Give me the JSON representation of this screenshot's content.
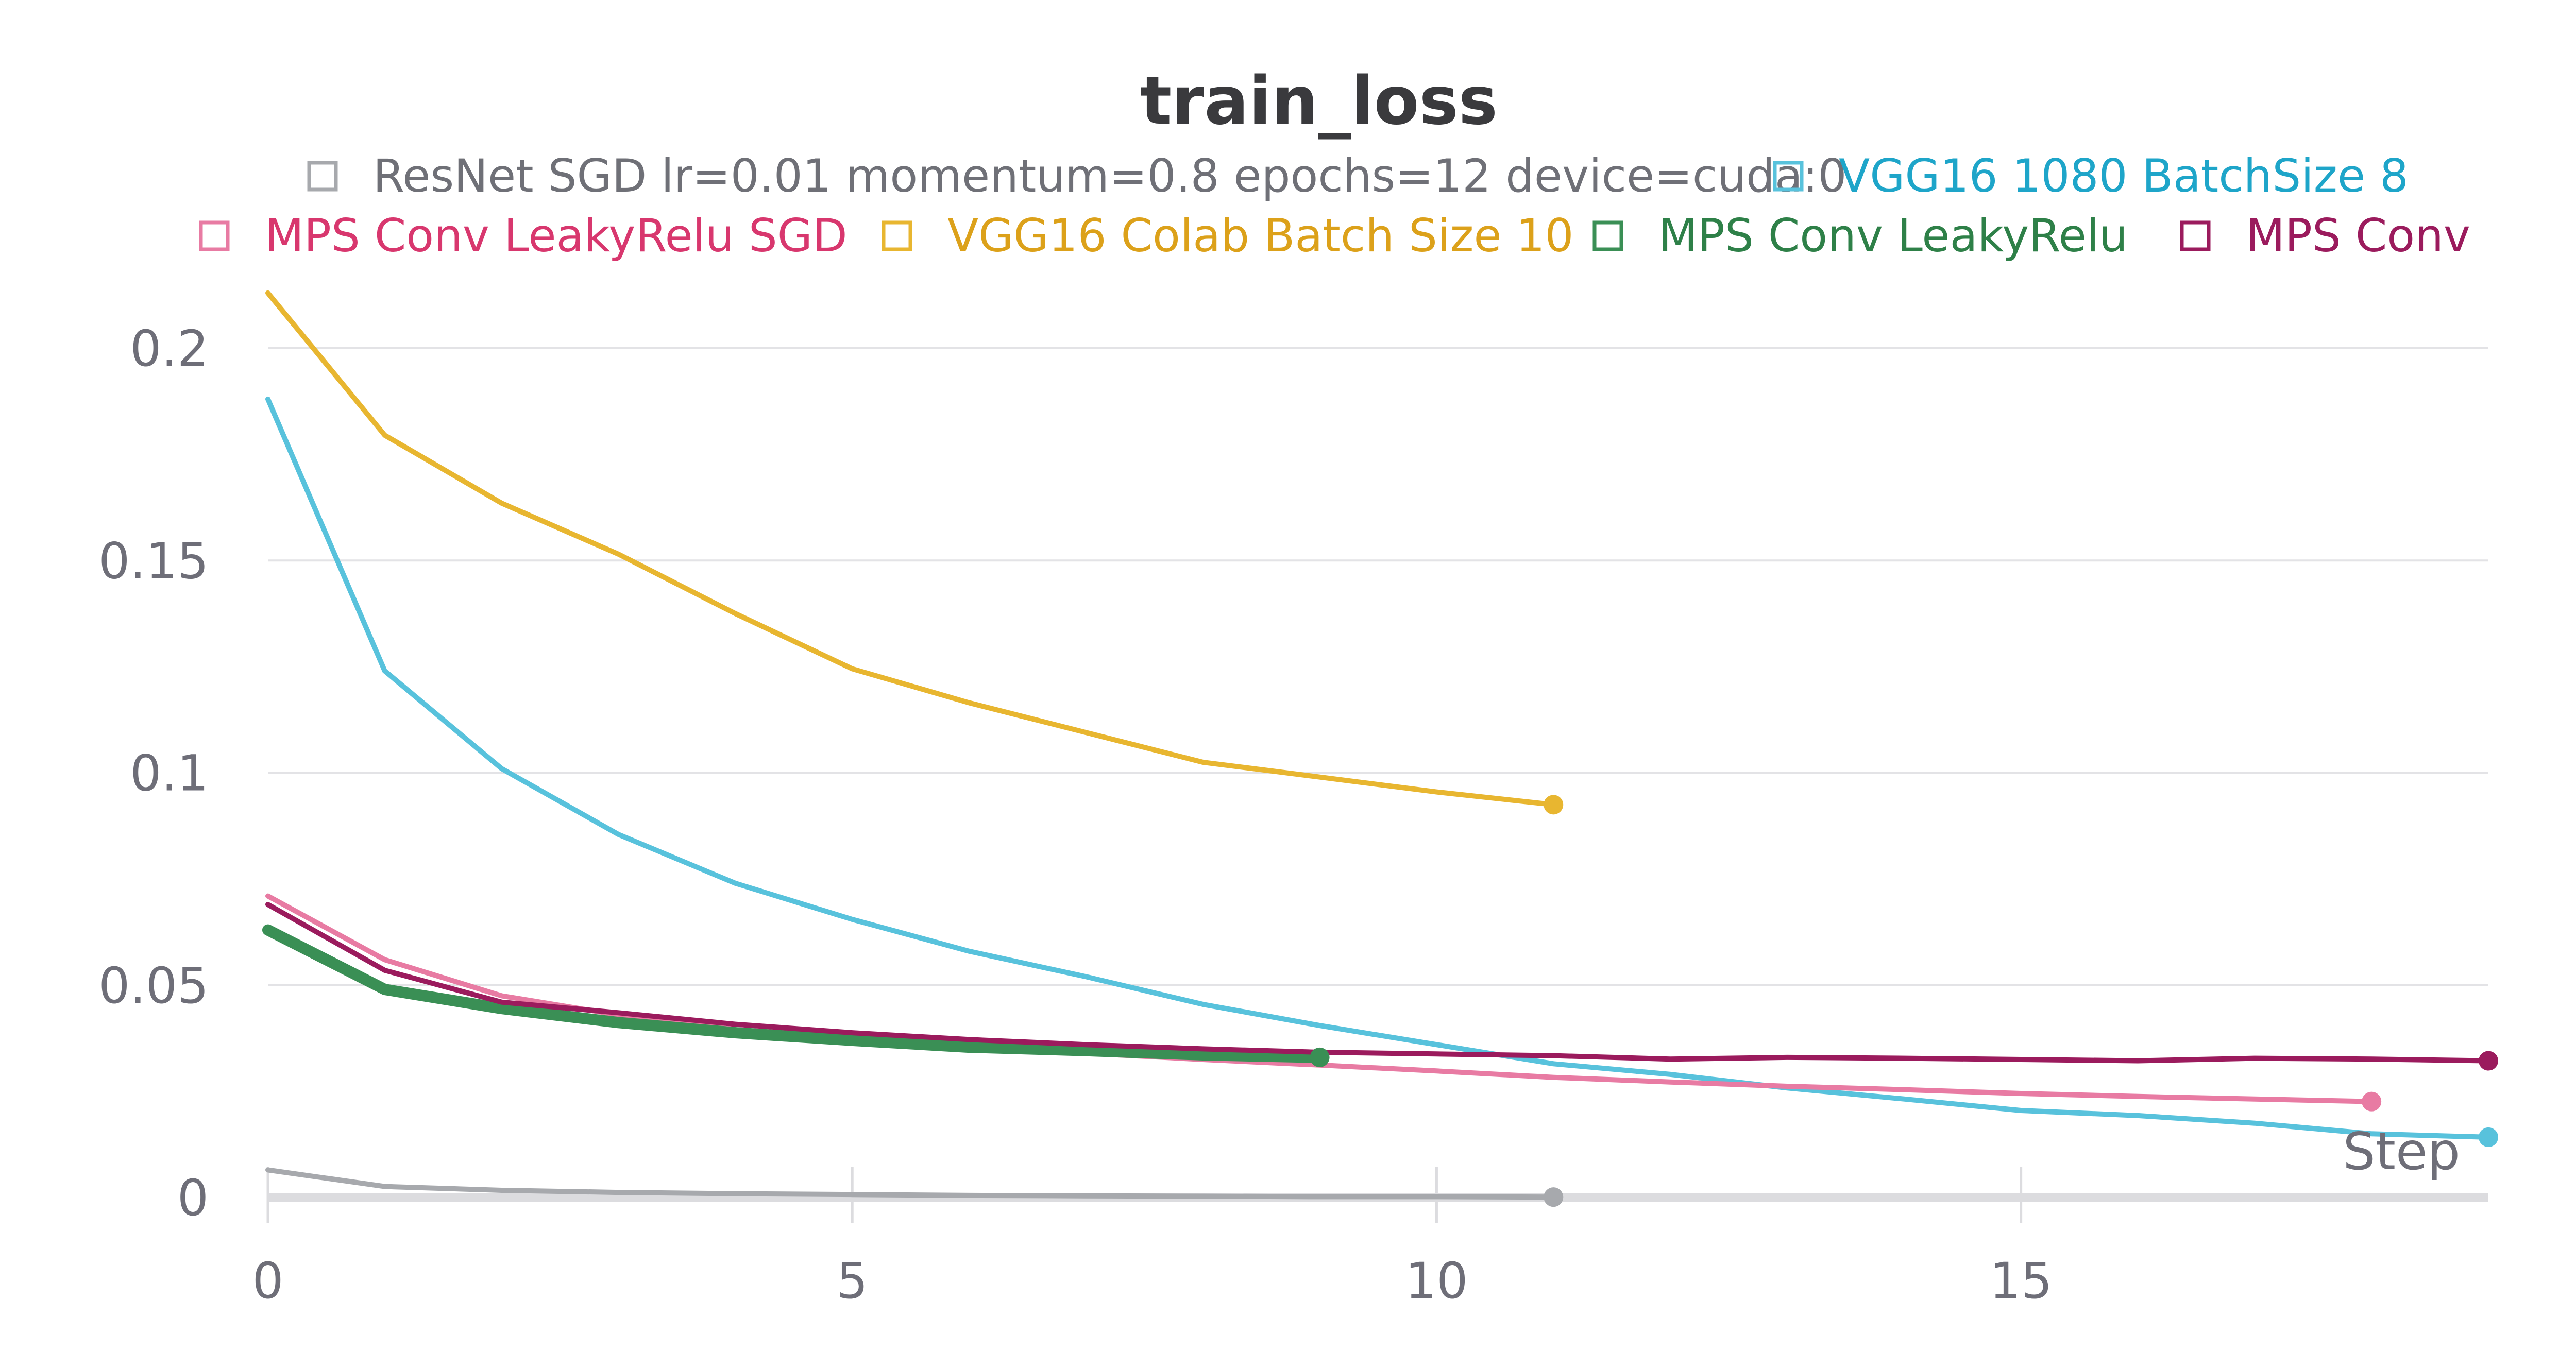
{
  "chart_data": {
    "type": "line",
    "title": "train_loss",
    "xlabel": "Step",
    "ylabel": "",
    "xlim": [
      0,
      19
    ],
    "ylim": [
      0,
      0.21
    ],
    "x_ticks": [
      0,
      5,
      10,
      15
    ],
    "x_tick_labels": [
      "0",
      "5",
      "10",
      "15"
    ],
    "y_ticks": [
      0,
      0.05,
      0.1,
      0.15,
      0.2
    ],
    "y_tick_labels": [
      "0",
      "0.05",
      "0.1",
      "0.15",
      "0.2"
    ],
    "grid": "horizontal",
    "legend_position": "top",
    "series": [
      {
        "name": "ResNet SGD lr=0.01 momentum=0.8 epochs=12 device=cuda:0",
        "color": "#a7a9ad",
        "x": [
          0,
          1,
          2,
          3,
          4,
          5,
          6,
          7,
          8,
          9,
          10,
          11
        ],
        "values": [
          0.0065,
          0.0026,
          0.0017,
          0.0012,
          0.0009,
          0.0007,
          0.0005,
          0.0004,
          0.0003,
          0.0002,
          0.0002,
          0.0001
        ]
      },
      {
        "name": "VGG16 1080 BatchSize 8",
        "color": "#58c2dc",
        "x": [
          0,
          1,
          2,
          3,
          4,
          5,
          6,
          7,
          8,
          9,
          10,
          11,
          12,
          13,
          14,
          15,
          16,
          17,
          18,
          19
        ],
        "values": [
          0.188,
          0.124,
          0.101,
          0.0855,
          0.074,
          0.0655,
          0.058,
          0.052,
          0.0455,
          0.0405,
          0.036,
          0.0315,
          0.029,
          0.0258,
          0.0232,
          0.0205,
          0.0193,
          0.0175,
          0.015,
          0.0142
        ]
      },
      {
        "name": "MPS Conv LeakyRelu SGD",
        "color": "#e87ba3",
        "x": [
          0,
          1,
          2,
          3,
          4,
          5,
          6,
          7,
          8,
          9,
          10,
          11,
          12,
          13,
          14,
          15,
          16,
          17,
          18
        ],
        "values": [
          0.071,
          0.056,
          0.0475,
          0.043,
          0.0395,
          0.0375,
          0.0355,
          0.034,
          0.0325,
          0.0312,
          0.0298,
          0.0283,
          0.0272,
          0.0262,
          0.0254,
          0.0245,
          0.0238,
          0.0232,
          0.0226
        ]
      },
      {
        "name": "VGG16 Colab Batch Size 10",
        "color": "#e8b630",
        "x": [
          0,
          1,
          2,
          3,
          4,
          5,
          6,
          7,
          8,
          9,
          10,
          11
        ],
        "values": [
          0.213,
          0.1795,
          0.1635,
          0.1515,
          0.1375,
          0.1245,
          0.1165,
          0.1095,
          0.1025,
          0.099,
          0.0955,
          0.0925
        ]
      },
      {
        "name": "MPS Conv LeakyRelu",
        "color": "#3a8f55",
        "x": [
          0,
          1,
          2,
          3,
          4,
          5,
          6,
          7,
          8,
          9
        ],
        "values": [
          0.063,
          0.049,
          0.0445,
          0.0412,
          0.0388,
          0.037,
          0.0354,
          0.0346,
          0.0336,
          0.033
        ]
      },
      {
        "name": "MPS Conv",
        "color": "#9b1b5d",
        "x": [
          0,
          1,
          2,
          3,
          4,
          5,
          6,
          7,
          8,
          9,
          10,
          11,
          12,
          13,
          14,
          15,
          16,
          17,
          18,
          19
        ],
        "values": [
          0.069,
          0.0535,
          0.046,
          0.0435,
          0.0408,
          0.0388,
          0.0372,
          0.036,
          0.035,
          0.0342,
          0.0338,
          0.0334,
          0.0326,
          0.033,
          0.0328,
          0.0325,
          0.0322,
          0.0328,
          0.0326,
          0.0322
        ]
      }
    ],
    "legend_rows": [
      [
        "ResNet SGD lr=0.01 momentum=0.8 epochs=12 device=cuda:0",
        "VGG16 1080 BatchSize 8"
      ],
      [
        "MPS Conv LeakyRelu SGD",
        "VGG16 Colab Batch Size 10",
        "MPS Conv LeakyRelu",
        "MPS Conv"
      ]
    ],
    "legend_text_colors": {
      "ResNet SGD lr=0.01 momentum=0.8 epochs=12 device=cuda:0": "#6f7077",
      "VGG16 1080 BatchSize 8": "#1ea5c9",
      "MPS Conv LeakyRelu SGD": "#d8376e",
      "VGG16 Colab Batch Size 10": "#dca11a",
      "MPS Conv LeakyRelu": "#2e8048",
      "MPS Conv": "#9b1b5d"
    },
    "line_widths": {
      "MPS Conv LeakyRelu": "bold"
    },
    "end_markers": true
  }
}
